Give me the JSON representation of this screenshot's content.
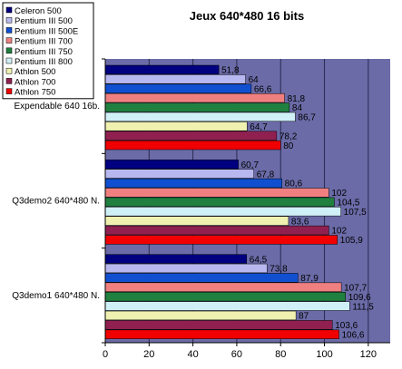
{
  "chart_data": {
    "type": "bar",
    "orientation": "horizontal",
    "title": "Jeux 640*480 16 bits",
    "xlabel": "",
    "ylabel": "",
    "xlim": [
      0,
      130
    ],
    "xticks": [
      0,
      20,
      40,
      60,
      80,
      100,
      120
    ],
    "grid": true,
    "legend_position": "top-left",
    "plot_background": "#6B6BA8",
    "categories": [
      "Expendable 640 16b.",
      "Q3demo2 640*480 N.",
      "Q3demo1 640*480 N."
    ],
    "series": [
      {
        "name": "Celeron 500",
        "color": "#000080",
        "values": [
          51.8,
          60.7,
          64.5
        ],
        "labels": [
          "51,8",
          "60,7",
          "64,5"
        ]
      },
      {
        "name": "Pentium III 500",
        "color": "#B8B8F0",
        "values": [
          64,
          67.8,
          73.8
        ],
        "labels": [
          "64",
          "67,8",
          "73,8"
        ]
      },
      {
        "name": "Pentium III 500E",
        "color": "#1050D0",
        "values": [
          66.6,
          80.6,
          87.9
        ],
        "labels": [
          "66,6",
          "80,6",
          "87,9"
        ]
      },
      {
        "name": "Pentium III 700",
        "color": "#F08080",
        "values": [
          81.8,
          102,
          107.7
        ],
        "labels": [
          "81,8",
          "102",
          "107,7"
        ]
      },
      {
        "name": "Pentium III 750",
        "color": "#208040",
        "values": [
          84,
          104.5,
          109.6
        ],
        "labels": [
          "84",
          "104,5",
          "109,6"
        ]
      },
      {
        "name": "Pentium III 800",
        "color": "#D0F0F8",
        "values": [
          86.7,
          107.5,
          111.5
        ],
        "labels": [
          "86,7",
          "107,5",
          "111,5"
        ]
      },
      {
        "name": "Athlon 500",
        "color": "#F0F0B0",
        "values": [
          64.7,
          83.6,
          87
        ],
        "labels": [
          "64,7",
          "83,6",
          "87"
        ]
      },
      {
        "name": "Athlon 700",
        "color": "#902050",
        "values": [
          78.2,
          102,
          103.6
        ],
        "labels": [
          "78,2",
          "102",
          "103,6"
        ]
      },
      {
        "name": "Athlon 750",
        "color": "#F00000",
        "values": [
          80,
          105.9,
          106.6
        ],
        "labels": [
          "80",
          "105,9",
          "106,6"
        ]
      }
    ]
  }
}
